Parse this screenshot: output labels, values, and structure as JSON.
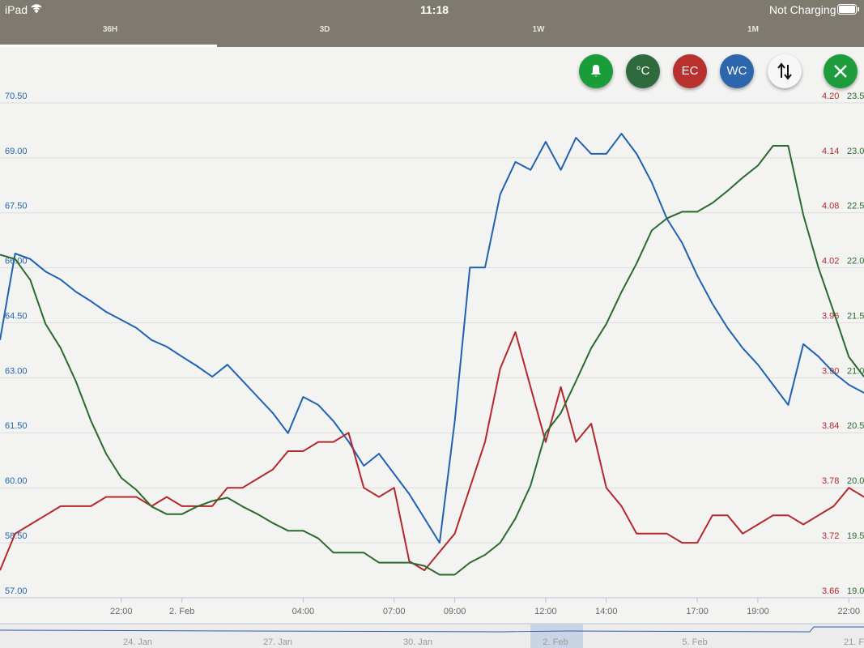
{
  "status_bar": {
    "device": "iPad",
    "time": "11:18",
    "battery": "Not Charging"
  },
  "tabs": [
    "36H",
    "3D",
    "1W",
    "1M"
  ],
  "navigator": {
    "labels": [
      "24. Jan",
      "27. Jan",
      "30. Jan",
      "2. Feb",
      "5. Feb",
      "21. F"
    ]
  },
  "chart_data": {
    "type": "line",
    "grid": true,
    "x": [
      -6,
      -5.5,
      -5,
      -4.5,
      -4,
      -3.5,
      -3,
      -2.5,
      -2,
      -1.5,
      -1,
      -0.5,
      0,
      0.5,
      1,
      1.5,
      2,
      2.5,
      3,
      3.5,
      4,
      4.5,
      5,
      5.5,
      6,
      6.5,
      7,
      7.5,
      8,
      8.5,
      9,
      9.5,
      10,
      10.5,
      11,
      11.5,
      12,
      12.5,
      13,
      13.5,
      14,
      14.5,
      15,
      15.5,
      16,
      16.5,
      17,
      17.5,
      18,
      18.5,
      19,
      19.5,
      20,
      20.5,
      21,
      21.5,
      22,
      22.5
    ],
    "xlim": [
      -6,
      22.5
    ],
    "xticks": [
      {
        "value": -2,
        "label": "22:00"
      },
      {
        "value": 0,
        "label": "2. Feb"
      },
      {
        "value": 4,
        "label": "04:00"
      },
      {
        "value": 7,
        "label": "07:00"
      },
      {
        "value": 9,
        "label": "09:00"
      },
      {
        "value": 12,
        "label": "12:00"
      },
      {
        "value": 14,
        "label": "14:00"
      },
      {
        "value": 17,
        "label": "17:00"
      },
      {
        "value": 19,
        "label": "19:00"
      },
      {
        "value": 22,
        "label": "22:00"
      }
    ],
    "ylim": [
      57,
      70.5
    ],
    "yticks": [
      {
        "value": 57,
        "label": "57.00"
      },
      {
        "value": 58.5,
        "label": "58.50"
      },
      {
        "value": 60,
        "label": "60.00"
      },
      {
        "value": 61.5,
        "label": "61.50"
      },
      {
        "value": 63,
        "label": "63.00"
      },
      {
        "value": 64.5,
        "label": "64.50"
      },
      {
        "value": 66,
        "label": "66.00"
      },
      {
        "value": 67.5,
        "label": "67.50"
      },
      {
        "value": 69,
        "label": "69.00"
      },
      {
        "value": 70.5,
        "label": "70.50"
      }
    ],
    "y2lim": [
      3.66,
      4.2
    ],
    "y2ticks": [
      3.66,
      3.72,
      3.78,
      3.84,
      {
        "value": 3.9,
        "label": "3.90"
      },
      3.96,
      4.02,
      4.08,
      4.14,
      {
        "value": 4.2,
        "label": "4.20"
      }
    ],
    "y3lim": [
      19,
      23.5
    ],
    "y3ticks": [
      {
        "value": 19,
        "label": "19.0"
      },
      19.5,
      {
        "value": 20,
        "label": "20.0"
      },
      20.5,
      {
        "value": 21,
        "label": "21.0"
      },
      21.5,
      {
        "value": 22,
        "label": "22.0"
      },
      22.5,
      {
        "value": 23,
        "label": "23.0"
      },
      23.5
    ],
    "series": [
      {
        "name": "WC",
        "color": "#1f63b0",
        "values": [
          64.03,
          66.39,
          66.24,
          65.9,
          65.68,
          65.35,
          65.09,
          64.8,
          64.58,
          64.36,
          64.03,
          63.85,
          63.58,
          63.32,
          63.03,
          63.36,
          62.92,
          62.48,
          62.04,
          61.49,
          62.48,
          62.26,
          61.82,
          61.26,
          60.6,
          60.93,
          60.38,
          59.83,
          59.17,
          58.5,
          61.82,
          66.01,
          66.01,
          68,
          68.89,
          68.67,
          69.44,
          68.67,
          69.55,
          69.11,
          69.11,
          69.66,
          69.11,
          68.33,
          67.34,
          66.68,
          65.79,
          65.02,
          64.36,
          63.81,
          63.36,
          62.81,
          62.26,
          63.92,
          63.58,
          63.14,
          62.81,
          62.59
        ]
      },
      {
        "name": "EC",
        "color": "#b3282d",
        "axis": "y2",
        "values": [
          3.69,
          3.73,
          3.74,
          3.75,
          3.76,
          3.76,
          3.76,
          3.77,
          3.77,
          3.77,
          3.76,
          3.77,
          3.76,
          3.76,
          3.76,
          3.78,
          3.78,
          3.79,
          3.8,
          3.82,
          3.82,
          3.83,
          3.83,
          3.84,
          3.78,
          3.77,
          3.78,
          3.7,
          3.69,
          3.71,
          3.73,
          3.78,
          3.83,
          3.91,
          3.95,
          3.89,
          3.83,
          3.89,
          3.83,
          3.85,
          3.78,
          3.76,
          3.73,
          3.73,
          3.73,
          3.72,
          3.72,
          3.75,
          3.75,
          3.73,
          3.74,
          3.75,
          3.75,
          3.74,
          3.75,
          3.76,
          3.78,
          3.77
        ]
      },
      {
        "name": "°C",
        "color": "#2b6a2f",
        "axis": "y3",
        "values": [
          22.12,
          22.08,
          21.89,
          21.49,
          21.27,
          20.97,
          20.61,
          20.31,
          20.09,
          19.98,
          19.83,
          19.76,
          19.76,
          19.83,
          19.88,
          19.91,
          19.83,
          19.76,
          19.68,
          19.61,
          19.61,
          19.54,
          19.41,
          19.41,
          19.41,
          19.32,
          19.32,
          19.32,
          19.29,
          19.21,
          19.21,
          19.32,
          19.39,
          19.5,
          19.72,
          20.02,
          20.5,
          20.68,
          20.97,
          21.27,
          21.49,
          21.78,
          22.04,
          22.34,
          22.45,
          22.51,
          22.51,
          22.59,
          22.7,
          22.82,
          22.93,
          23.11,
          23.11,
          22.48,
          22,
          21.6,
          21.19,
          21.01
        ]
      }
    ]
  }
}
